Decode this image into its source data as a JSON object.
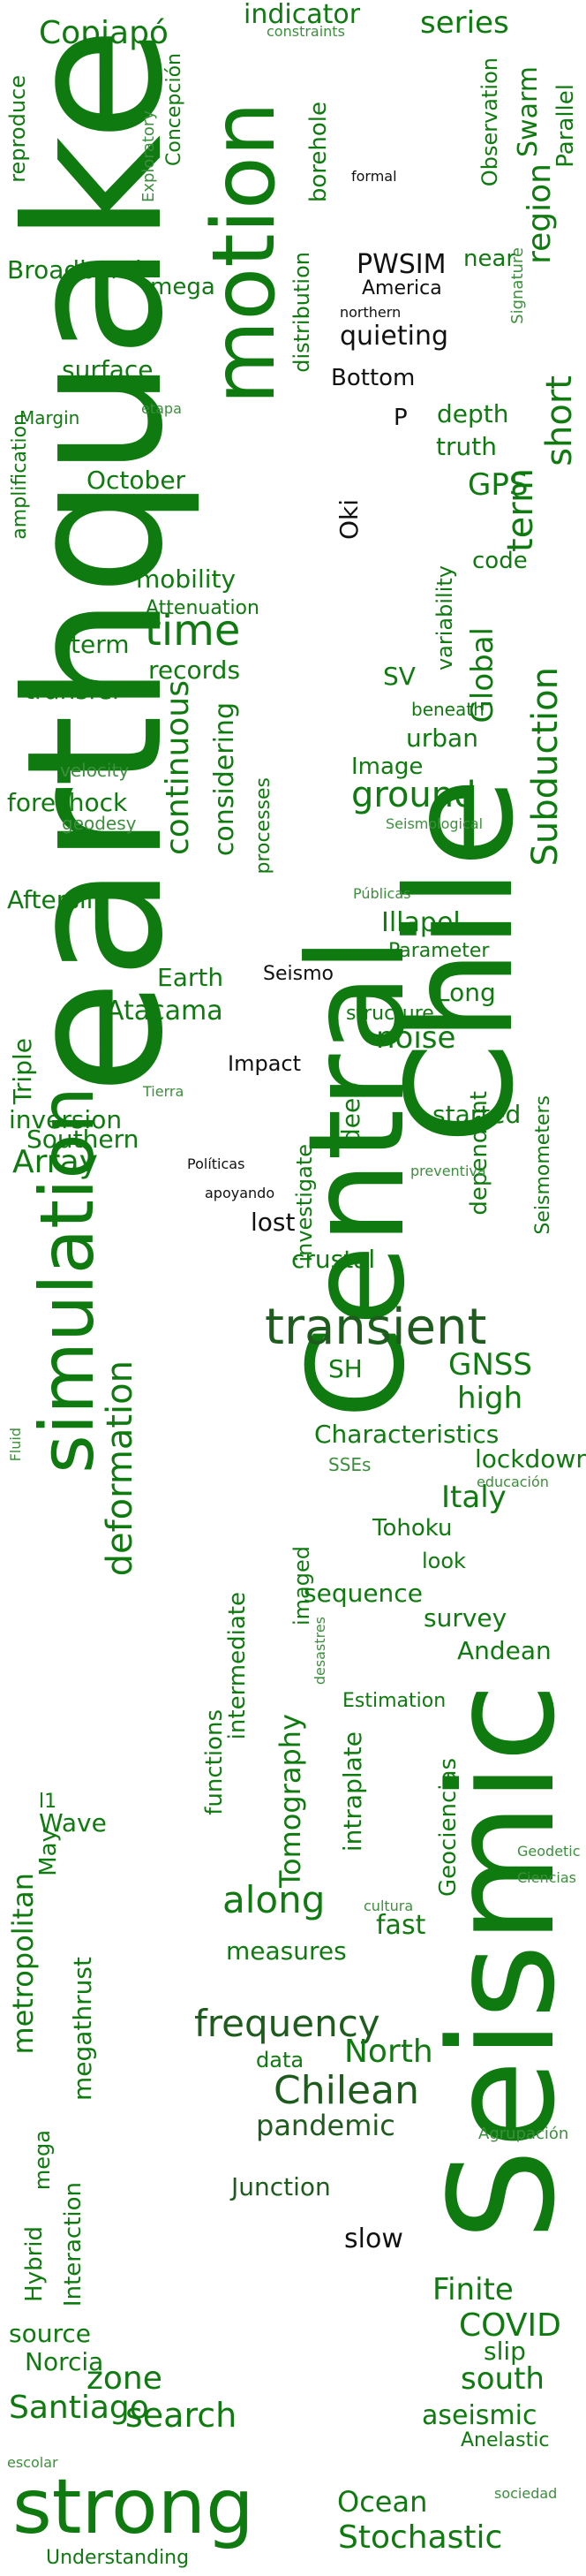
{
  "palette": {
    "green": "#0f7a0f",
    "green_light": "#3c8f3c",
    "green_dark": "#1e5c1e",
    "black": "#111111"
  },
  "words": [
    {
      "id": "w1",
      "text": "earthquake"
    },
    {
      "id": "w2",
      "text": "Chile"
    },
    {
      "id": "w3",
      "text": "Central"
    },
    {
      "id": "w4",
      "text": "Seismic"
    },
    {
      "id": "w5",
      "text": "motion"
    },
    {
      "id": "w6",
      "text": "simulation"
    },
    {
      "id": "w7",
      "text": "strong"
    },
    {
      "id": "w8",
      "text": "transient"
    },
    {
      "id": "w9",
      "text": "Subduction"
    },
    {
      "id": "w10",
      "text": "deformation"
    },
    {
      "id": "w11",
      "text": "frequency"
    },
    {
      "id": "w12",
      "text": "search"
    },
    {
      "id": "w13",
      "text": "zone"
    },
    {
      "id": "w14",
      "text": "Stochastic"
    },
    {
      "id": "w15",
      "text": "Copiapó"
    },
    {
      "id": "w16",
      "text": "indicator"
    },
    {
      "id": "w17",
      "text": "series"
    },
    {
      "id": "w18",
      "text": "constraints"
    },
    {
      "id": "w19",
      "text": "Concepción"
    },
    {
      "id": "w20",
      "text": "Observation"
    },
    {
      "id": "w21",
      "text": "Swarm"
    },
    {
      "id": "w22",
      "text": "Parallel"
    },
    {
      "id": "w23",
      "text": "region"
    },
    {
      "id": "w24",
      "text": "reproduce"
    },
    {
      "id": "w25",
      "text": "Exploratory"
    },
    {
      "id": "w26",
      "text": "borehole"
    },
    {
      "id": "w27",
      "text": "formal"
    },
    {
      "id": "w28",
      "text": "PWSIM"
    },
    {
      "id": "w29",
      "text": "America"
    },
    {
      "id": "w30",
      "text": "northern"
    },
    {
      "id": "w31",
      "text": "near"
    },
    {
      "id": "w32",
      "text": "Signature"
    },
    {
      "id": "w33",
      "text": "Broadband"
    },
    {
      "id": "w34",
      "text": "mega"
    },
    {
      "id": "w35",
      "text": "distribution"
    },
    {
      "id": "w36",
      "text": "quieting"
    },
    {
      "id": "w37",
      "text": "Bottom"
    },
    {
      "id": "w38",
      "text": "surface"
    },
    {
      "id": "w39",
      "text": "etapa"
    },
    {
      "id": "w40",
      "text": "Margin"
    },
    {
      "id": "w41",
      "text": "amplification"
    },
    {
      "id": "w42",
      "text": "P"
    },
    {
      "id": "w43",
      "text": "depth"
    },
    {
      "id": "w44",
      "text": "truth"
    },
    {
      "id": "w45",
      "text": "short"
    },
    {
      "id": "w46",
      "text": "term"
    },
    {
      "id": "w47",
      "text": "October"
    },
    {
      "id": "w48",
      "text": "GPS"
    },
    {
      "id": "w49",
      "text": "Oki"
    },
    {
      "id": "w50",
      "text": "code"
    },
    {
      "id": "w51",
      "text": "mobility"
    },
    {
      "id": "w52",
      "text": "Attenuation"
    },
    {
      "id": "w53",
      "text": "time"
    },
    {
      "id": "w54",
      "text": "variability"
    },
    {
      "id": "w55",
      "text": "Global"
    },
    {
      "id": "w56",
      "text": "term"
    },
    {
      "id": "w57",
      "text": "records"
    },
    {
      "id": "w58",
      "text": "continuous"
    },
    {
      "id": "w59",
      "text": "transfer"
    },
    {
      "id": "w60",
      "text": "SV"
    },
    {
      "id": "w61",
      "text": "beneath"
    },
    {
      "id": "w62",
      "text": "urban"
    },
    {
      "id": "w63",
      "text": "considering"
    },
    {
      "id": "w64",
      "text": "velocity"
    },
    {
      "id": "w65",
      "text": "Image"
    },
    {
      "id": "w66",
      "text": "processes"
    },
    {
      "id": "w67",
      "text": "foreshock"
    },
    {
      "id": "w68",
      "text": "ground"
    },
    {
      "id": "w69",
      "text": "geodesy"
    },
    {
      "id": "w70",
      "text": "Seismological"
    },
    {
      "id": "w71",
      "text": "Públicas"
    },
    {
      "id": "w72",
      "text": "Afterslip"
    },
    {
      "id": "w73",
      "text": "Illapel"
    },
    {
      "id": "w74",
      "text": "Parameter"
    },
    {
      "id": "w75",
      "text": "Earth"
    },
    {
      "id": "w76",
      "text": "Seismo"
    },
    {
      "id": "w77",
      "text": "Long"
    },
    {
      "id": "w78",
      "text": "Atacama"
    },
    {
      "id": "w79",
      "text": "structure"
    },
    {
      "id": "w80",
      "text": "noise"
    },
    {
      "id": "w81",
      "text": "Triple"
    },
    {
      "id": "w82",
      "text": "Impact"
    },
    {
      "id": "w83",
      "text": "Tierra"
    },
    {
      "id": "w84",
      "text": "inversion"
    },
    {
      "id": "w85",
      "text": "Southern"
    },
    {
      "id": "w86",
      "text": "deep"
    },
    {
      "id": "w87",
      "text": "started"
    },
    {
      "id": "w88",
      "text": "Array"
    },
    {
      "id": "w89",
      "text": "Políticas"
    },
    {
      "id": "w90",
      "text": "dependent"
    },
    {
      "id": "w91",
      "text": "Seismometers"
    },
    {
      "id": "w92",
      "text": "preventiva"
    },
    {
      "id": "w93",
      "text": "investigate"
    },
    {
      "id": "w94",
      "text": "apoyando"
    },
    {
      "id": "w95",
      "text": "lost"
    },
    {
      "id": "w96",
      "text": "crustal"
    },
    {
      "id": "w97",
      "text": "SH"
    },
    {
      "id": "w98",
      "text": "GNSS"
    },
    {
      "id": "w99",
      "text": "high"
    },
    {
      "id": "w100",
      "text": "Fluid"
    },
    {
      "id": "w101",
      "text": "Characteristics"
    },
    {
      "id": "w102",
      "text": "SSEs"
    },
    {
      "id": "w103",
      "text": "lockdown"
    },
    {
      "id": "w104",
      "text": "educación"
    },
    {
      "id": "w105",
      "text": "Italy"
    },
    {
      "id": "w106",
      "text": "imaged"
    },
    {
      "id": "w107",
      "text": "Tohoku"
    },
    {
      "id": "w108",
      "text": "look"
    },
    {
      "id": "w109",
      "text": "sequence"
    },
    {
      "id": "w110",
      "text": "survey"
    },
    {
      "id": "w111",
      "text": "intermediate"
    },
    {
      "id": "w112",
      "text": "desastres"
    },
    {
      "id": "w113",
      "text": "Andean"
    },
    {
      "id": "w114",
      "text": "Estimation"
    },
    {
      "id": "w115",
      "text": "functions"
    },
    {
      "id": "w116",
      "text": "Tomography"
    },
    {
      "id": "w117",
      "text": "intraplate"
    },
    {
      "id": "w118",
      "text": "Geociencias"
    },
    {
      "id": "w119",
      "text": "l1"
    },
    {
      "id": "w120",
      "text": "Wave"
    },
    {
      "id": "w121",
      "text": "May"
    },
    {
      "id": "w122",
      "text": "metropolitan"
    },
    {
      "id": "w123",
      "text": "Geodetic"
    },
    {
      "id": "w124",
      "text": "Ciencias"
    },
    {
      "id": "w125",
      "text": "along"
    },
    {
      "id": "w126",
      "text": "cultura"
    },
    {
      "id": "w127",
      "text": "measures"
    },
    {
      "id": "w128",
      "text": "fast"
    },
    {
      "id": "w129",
      "text": "megathrust"
    },
    {
      "id": "w130",
      "text": "data"
    },
    {
      "id": "w131",
      "text": "North"
    },
    {
      "id": "w132",
      "text": "Chilean"
    },
    {
      "id": "w133",
      "text": "pandemic"
    },
    {
      "id": "w134",
      "text": "Agrupación"
    },
    {
      "id": "w135",
      "text": "mega"
    },
    {
      "id": "w136",
      "text": "Interaction"
    },
    {
      "id": "w137",
      "text": "Junction"
    },
    {
      "id": "w138",
      "text": "Hybrid"
    },
    {
      "id": "w139",
      "text": "slow"
    },
    {
      "id": "w140",
      "text": "Finite"
    },
    {
      "id": "w141",
      "text": "COVID"
    },
    {
      "id": "w142",
      "text": "source"
    },
    {
      "id": "w143",
      "text": "slip"
    },
    {
      "id": "w144",
      "text": "Norcia"
    },
    {
      "id": "w145",
      "text": "south"
    },
    {
      "id": "w146",
      "text": "Santiago"
    },
    {
      "id": "w147",
      "text": "aseismic"
    },
    {
      "id": "w148",
      "text": "Anelastic"
    },
    {
      "id": "w149",
      "text": "escolar"
    },
    {
      "id": "w150",
      "text": "sociedad"
    },
    {
      "id": "w151",
      "text": "Ocean"
    },
    {
      "id": "w152",
      "text": "Understanding"
    }
  ]
}
